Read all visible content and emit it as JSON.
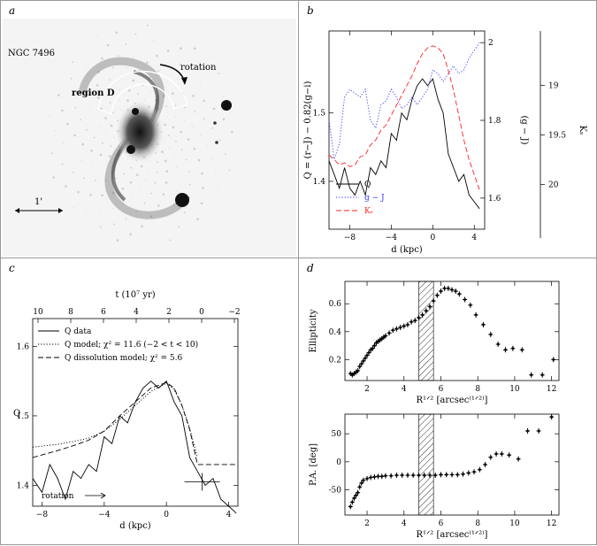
{
  "panels": {
    "a": {
      "label": "a",
      "galaxy_name": "NGC 7496",
      "rotation_label": "rotation",
      "region_label": "region D",
      "scale_label": "1'"
    },
    "b": {
      "label": "b"
    },
    "c": {
      "label": "c",
      "arrow_label": "rotation"
    },
    "d": {
      "label": "d"
    }
  },
  "colors": {
    "Q": "#000000",
    "gJ": "#3333ff",
    "Ks": "#ff2222",
    "border": "#999999"
  },
  "chart_data": [
    {
      "id": "b",
      "type": "line",
      "xlabel": "d (kpc)",
      "ylabel": "Q = (r−J) − 0.82(g−i)",
      "y2label": "(g − J)",
      "y3label": "Kₛ",
      "xlim": [
        -10,
        5
      ],
      "xticks": [
        -8,
        -4,
        0,
        4
      ],
      "ylim": [
        1.33,
        1.62
      ],
      "yticks": [
        1.4,
        1.5
      ],
      "y2lim": [
        1.52,
        2.03
      ],
      "y2ticks": [
        1.6,
        1.8,
        2
      ],
      "y3lim": [
        20.45,
        18.45
      ],
      "y3ticks": [
        19,
        19.5,
        20
      ],
      "legend": [
        "Q",
        "g − J",
        "Kₛ"
      ],
      "legend_position": "bottom-left",
      "series": [
        {
          "name": "Q",
          "axis": "y",
          "style": "solid",
          "x": [
            -10,
            -9.5,
            -9,
            -8.5,
            -8,
            -7.5,
            -7,
            -6.5,
            -6,
            -5.5,
            -5,
            -4.5,
            -4,
            -3.5,
            -3,
            -2.5,
            -2,
            -1.5,
            -1,
            -0.5,
            0,
            0.5,
            1,
            1.5,
            2,
            2.5,
            3,
            3.5,
            4,
            4.5
          ],
          "y": [
            1.43,
            1.41,
            1.39,
            1.42,
            1.39,
            1.38,
            1.4,
            1.38,
            1.42,
            1.41,
            1.43,
            1.42,
            1.47,
            1.46,
            1.5,
            1.49,
            1.52,
            1.54,
            1.55,
            1.54,
            1.55,
            1.52,
            1.5,
            1.44,
            1.42,
            1.4,
            1.41,
            1.38,
            1.37,
            1.36
          ]
        },
        {
          "name": "g − J",
          "axis": "y2",
          "style": "dotted",
          "x": [
            -10,
            -9.5,
            -9,
            -8.5,
            -8,
            -7.5,
            -7,
            -6.5,
            -6,
            -5.5,
            -5,
            -4.5,
            -4,
            -3.5,
            -3,
            -2.5,
            -2,
            -1.5,
            -1,
            -0.5,
            0,
            0.5,
            1,
            1.5,
            2,
            2.5,
            3,
            3.5,
            4,
            4.5
          ],
          "y": [
            1.8,
            1.7,
            1.74,
            1.86,
            1.88,
            1.87,
            1.86,
            1.88,
            1.8,
            1.78,
            1.84,
            1.85,
            1.88,
            1.86,
            1.83,
            1.84,
            1.86,
            1.84,
            1.86,
            1.88,
            1.93,
            1.92,
            1.9,
            1.92,
            1.94,
            1.92,
            1.93,
            1.96,
            1.98,
            2.0
          ]
        },
        {
          "name": "Kₛ",
          "axis": "y3",
          "style": "dashed",
          "x": [
            -10,
            -9.5,
            -9,
            -8.5,
            -8,
            -7.5,
            -7,
            -6.5,
            -6,
            -5.5,
            -5,
            -4.5,
            -4,
            -3.5,
            -3,
            -2.5,
            -2,
            -1.5,
            -1,
            -0.5,
            0,
            0.5,
            1,
            1.5,
            2,
            2.5,
            3,
            3.5,
            4,
            4.5
          ],
          "y": [
            19.7,
            19.75,
            19.8,
            19.78,
            19.82,
            19.8,
            19.72,
            19.7,
            19.6,
            19.55,
            19.45,
            19.4,
            19.3,
            19.2,
            19.1,
            19.0,
            18.9,
            18.78,
            18.68,
            18.62,
            18.6,
            18.62,
            18.68,
            18.85,
            19.05,
            19.3,
            19.55,
            19.75,
            19.9,
            20.05
          ]
        }
      ]
    },
    {
      "id": "c",
      "type": "line",
      "xlabel": "d (kpc)",
      "ylabel": "Q",
      "top_xlabel": "t (10⁷ yr)",
      "xlim": [
        -8.6,
        4.6
      ],
      "xticks": [
        -8,
        -4,
        0,
        4
      ],
      "top_xticks": [
        10,
        8,
        6,
        4,
        2,
        0,
        -2
      ],
      "ylim": [
        1.37,
        1.64
      ],
      "yticks": [
        1.4,
        1.5,
        1.6
      ],
      "legend": [
        "Q data",
        "Q model; χ² = 11.6 (−2 < t < 10)",
        "Q dissolution model; χ² = 5.6"
      ],
      "legend_position": "top-left",
      "series": [
        {
          "name": "Q data",
          "style": "solid",
          "x": [
            -8.6,
            -8,
            -7.5,
            -7,
            -6.5,
            -6,
            -5.5,
            -5,
            -4.5,
            -4,
            -3.5,
            -3,
            -2.5,
            -2,
            -1.5,
            -1,
            -0.5,
            0,
            0.5,
            1,
            1.5,
            2,
            2.5,
            3,
            3.5,
            4,
            4.5
          ],
          "y": [
            1.41,
            1.39,
            1.43,
            1.41,
            1.38,
            1.42,
            1.41,
            1.43,
            1.42,
            1.47,
            1.46,
            1.5,
            1.49,
            1.52,
            1.54,
            1.55,
            1.54,
            1.55,
            1.52,
            1.5,
            1.44,
            1.42,
            1.4,
            1.41,
            1.38,
            1.37,
            1.36
          ]
        },
        {
          "name": "Q model",
          "style": "dotted",
          "x": [
            -8.6,
            -7,
            -6,
            -5,
            -4,
            -3,
            -2,
            -1,
            0,
            0.5,
            1,
            1.5,
            2
          ],
          "y": [
            1.455,
            1.459,
            1.463,
            1.468,
            1.478,
            1.495,
            1.515,
            1.535,
            1.547,
            1.538,
            1.515,
            1.482,
            1.44
          ]
        },
        {
          "name": "Q dissolution model",
          "style": "dashed",
          "x": [
            -8.6,
            -7,
            -6,
            -5,
            -4,
            -3,
            -2,
            -1,
            0,
            0.5,
            1,
            1.5,
            2,
            4.6
          ],
          "y": [
            1.44,
            1.45,
            1.457,
            1.465,
            1.478,
            1.5,
            1.52,
            1.54,
            1.548,
            1.54,
            1.515,
            1.48,
            1.43,
            1.43
          ]
        }
      ]
    },
    {
      "id": "d-top",
      "type": "scatter",
      "xlabel": "R¹ᐟ² [arcsec⁽¹ᐟ²⁾]",
      "ylabel": "Ellipticity",
      "xlim": [
        0.8,
        12.4
      ],
      "xticks": [
        2,
        4,
        6,
        8,
        10,
        12
      ],
      "ylim": [
        0.05,
        0.76
      ],
      "yticks": [
        0.2,
        0.4,
        0.6
      ],
      "hatched_band": [
        4.8,
        5.6
      ],
      "x": [
        1.1,
        1.2,
        1.3,
        1.4,
        1.5,
        1.6,
        1.7,
        1.8,
        1.9,
        2.0,
        2.1,
        2.2,
        2.3,
        2.4,
        2.5,
        2.6,
        2.7,
        2.8,
        2.9,
        3.0,
        3.2,
        3.4,
        3.6,
        3.8,
        4.0,
        4.2,
        4.4,
        4.6,
        4.8,
        5.0,
        5.2,
        5.4,
        5.6,
        5.8,
        6.0,
        6.2,
        6.4,
        6.6,
        6.8,
        7.0,
        7.3,
        7.6,
        7.9,
        8.3,
        8.7,
        9.1,
        9.5,
        9.9,
        10.4,
        10.9,
        11.5,
        12.1
      ],
      "y": [
        0.1,
        0.09,
        0.1,
        0.11,
        0.12,
        0.15,
        0.17,
        0.19,
        0.21,
        0.23,
        0.25,
        0.27,
        0.28,
        0.3,
        0.32,
        0.33,
        0.34,
        0.35,
        0.36,
        0.37,
        0.39,
        0.41,
        0.42,
        0.43,
        0.44,
        0.45,
        0.47,
        0.48,
        0.5,
        0.52,
        0.55,
        0.58,
        0.62,
        0.66,
        0.69,
        0.71,
        0.71,
        0.7,
        0.69,
        0.67,
        0.63,
        0.59,
        0.52,
        0.45,
        0.38,
        0.31,
        0.27,
        0.28,
        0.27,
        0.09,
        0.09,
        0.2
      ]
    },
    {
      "id": "d-bottom",
      "type": "scatter",
      "xlabel": "R¹ᐟ² [arcsec⁽¹ᐟ²⁾]",
      "ylabel": "P.A. [deg]",
      "xlim": [
        0.8,
        12.4
      ],
      "xticks": [
        2,
        4,
        6,
        8,
        10,
        12
      ],
      "ylim": [
        -95,
        85
      ],
      "yticks": [
        -50,
        0,
        50
      ],
      "hatched_band": [
        4.8,
        5.6
      ],
      "x": [
        1.1,
        1.2,
        1.3,
        1.4,
        1.5,
        1.6,
        1.7,
        1.8,
        2.0,
        2.2,
        2.4,
        2.6,
        2.8,
        3.0,
        3.3,
        3.6,
        3.9,
        4.2,
        4.5,
        4.8,
        5.1,
        5.4,
        5.7,
        6.0,
        6.3,
        6.6,
        6.9,
        7.2,
        7.5,
        7.8,
        8.1,
        8.4,
        8.7,
        9.0,
        9.3,
        9.7,
        10.2,
        10.7,
        11.3,
        12.0
      ],
      "y": [
        -80,
        -72,
        -65,
        -60,
        -55,
        -45,
        -38,
        -33,
        -30,
        -28,
        -27,
        -26,
        -26,
        -25,
        -25,
        -24,
        -24,
        -24,
        -24,
        -24,
        -24,
        -24,
        -24,
        -23,
        -23,
        -23,
        -23,
        -22,
        -20,
        -18,
        -14,
        -5,
        8,
        14,
        14,
        12,
        5,
        55,
        55,
        80
      ]
    }
  ]
}
